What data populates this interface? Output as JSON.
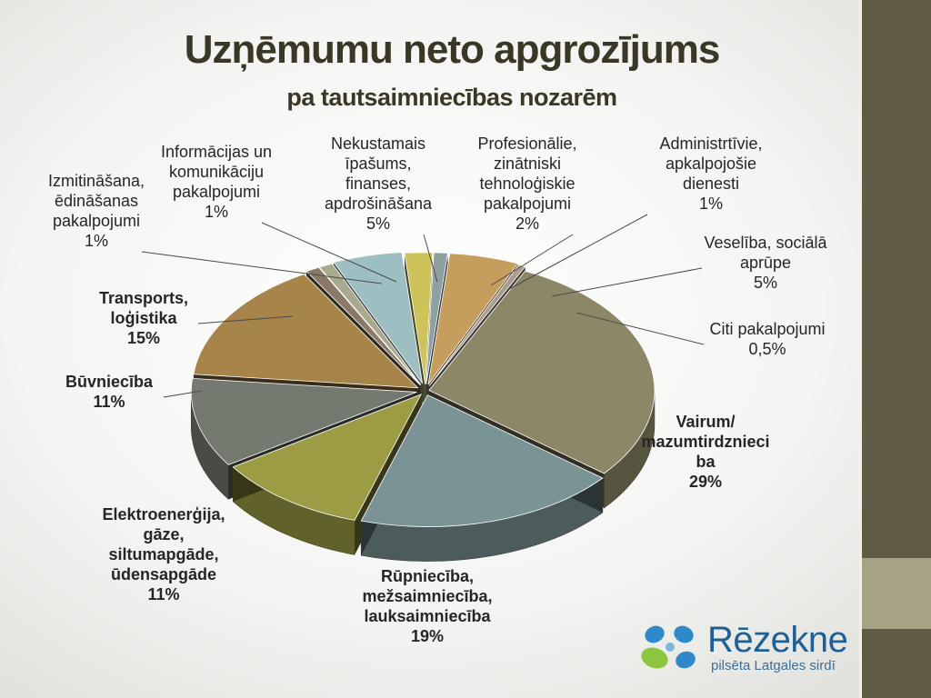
{
  "slide": {
    "title": "Uzņēmumu neto apgrozījums",
    "subtitle": "pa tautsaimniecības nozarēm"
  },
  "logo": {
    "name": "Rēzekne",
    "tagline": "pilsēta Latgales sirdī"
  },
  "colors": {
    "sidebar": "#615a45",
    "sidebar_accent": "#a8a285",
    "title": "#3b3726"
  },
  "chart_data": {
    "type": "pie",
    "style": "3d-exploded",
    "title": "Uzņēmumu neto apgrozījums pa tautsaimniecības nozarēm",
    "slices": [
      {
        "label": [
          "Vairum/",
          "mazumtirdznieci",
          "ba"
        ],
        "value_label": "29%",
        "value": 29,
        "color": "#8c8767",
        "bold": true
      },
      {
        "label": [
          "Rūpniecība,",
          "mežsaimniecība,",
          "lauksaimniecība"
        ],
        "value_label": "19%",
        "value": 19,
        "color": "#7a9496",
        "bold": true
      },
      {
        "label": [
          "Elektroenerģija,",
          "gāze,",
          "siltumapgāde,",
          "ūdensapgāde"
        ],
        "value_label": "11%",
        "value": 11,
        "color": "#9c9c45",
        "bold": true
      },
      {
        "label": [
          "Būvniecība"
        ],
        "value_label": "11%",
        "value": 11,
        "color": "#757a70",
        "bold": true
      },
      {
        "label": [
          "Transports,",
          "loģistika"
        ],
        "value_label": "15%",
        "value": 15,
        "color": "#a6844a",
        "bold": true
      },
      {
        "label": [
          "Izmitināšana,",
          "ēdināšanas",
          "pakalpojumi"
        ],
        "value_label": "1%",
        "value": 1,
        "color": "#8a7966",
        "bold": false
      },
      {
        "label": [
          "Informācijas un",
          "komunikāciju",
          "pakalpojumi"
        ],
        "value_label": "1%",
        "value": 1,
        "color": "#a9a98d",
        "bold": false
      },
      {
        "label": [
          "Nekustamais",
          "īpašums,",
          "finanses,",
          "apdrošināšana"
        ],
        "value_label": "5%",
        "value": 5,
        "color": "#9dbfc2",
        "bold": false
      },
      {
        "label": [
          "Profesionālie,",
          "zinātniski",
          "tehnoloģiskie",
          "pakalpojumi"
        ],
        "value_label": "2%",
        "value": 2,
        "color": "#cec35a",
        "bold": false
      },
      {
        "label": [
          "Administrtīvie,",
          "apkalpojošie",
          "dienesti"
        ],
        "value_label": "1%",
        "value": 1,
        "color": "#8ea0a0",
        "bold": false
      },
      {
        "label": [
          "Veselība, sociālā",
          "aprūpe"
        ],
        "value_label": "5%",
        "value": 5,
        "color": "#c59d5c",
        "bold": false
      },
      {
        "label": [
          "Citi pakalpojumi"
        ],
        "value_label": "0,5%",
        "value": 0.5,
        "color": "#a89c8c",
        "bold": false
      }
    ]
  }
}
